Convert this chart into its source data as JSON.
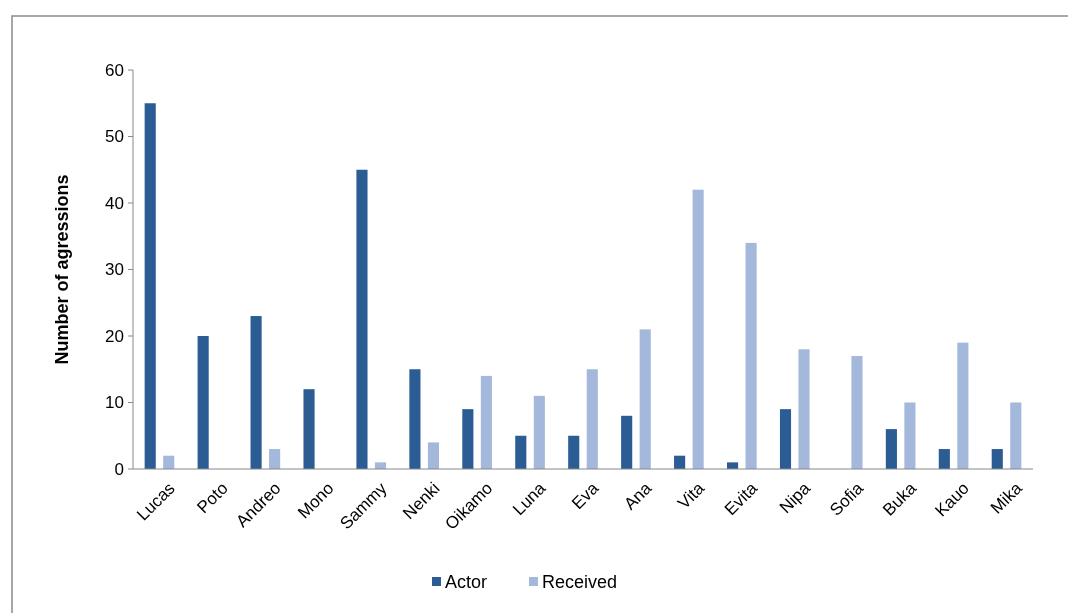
{
  "chart_data": {
    "type": "bar",
    "ylabel": "Number of agressions",
    "categories": [
      "Lucas",
      "Poto",
      "Andreo",
      "Mono",
      "Sammy",
      "Nenki",
      "Oikamo",
      "Luna",
      "Eva",
      "Ana",
      "Vita",
      "Evita",
      "Nipa",
      "Sofia",
      "Buka",
      "Kauo",
      "Mika"
    ],
    "series": [
      {
        "name": "Actor",
        "color": "#2b5c94",
        "values": [
          55,
          20,
          23,
          12,
          45,
          15,
          9,
          5,
          5,
          8,
          2,
          1,
          9,
          0,
          6,
          3,
          3
        ]
      },
      {
        "name": "Received",
        "color": "#a4b8dc",
        "values": [
          2,
          0,
          3,
          0,
          1,
          4,
          14,
          11,
          15,
          21,
          42,
          34,
          18,
          17,
          10,
          19,
          10
        ]
      }
    ],
    "ylim": [
      0,
      60
    ],
    "yticks": [
      0,
      10,
      20,
      30,
      40,
      50,
      60
    ],
    "grid": false,
    "legend": "bottom"
  }
}
